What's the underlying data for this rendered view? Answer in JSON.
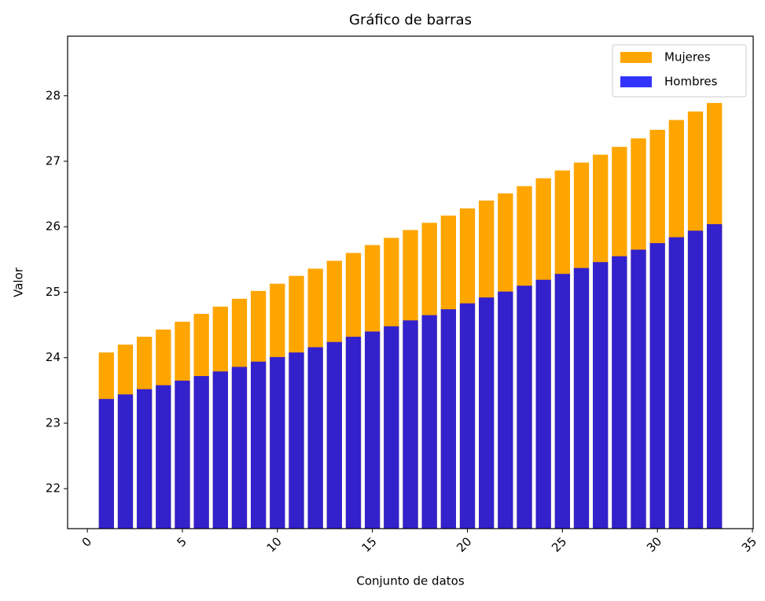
{
  "chart_data": {
    "type": "bar",
    "overlap": true,
    "title": "Gráfico de barras",
    "x_label": "Conjunto de datos",
    "y_label": "Valor",
    "x": [
      1,
      2,
      3,
      4,
      5,
      6,
      7,
      8,
      9,
      10,
      11,
      12,
      13,
      14,
      15,
      16,
      17,
      18,
      19,
      20,
      21,
      22,
      23,
      24,
      25,
      26,
      27,
      28,
      29,
      30,
      31,
      32,
      33
    ],
    "bar_width": 0.8,
    "series": [
      {
        "name": "Mujeres",
        "color": "#ffa500",
        "alpha": 1,
        "values": [
          24.08,
          24.2,
          24.32,
          24.43,
          24.55,
          24.67,
          24.78,
          24.9,
          25.02,
          25.13,
          25.25,
          25.36,
          25.48,
          25.6,
          25.72,
          25.83,
          25.95,
          26.06,
          26.17,
          26.28,
          26.4,
          26.51,
          26.62,
          26.74,
          26.86,
          26.98,
          27.1,
          27.22,
          27.35,
          27.48,
          27.63,
          27.76,
          27.89
        ]
      },
      {
        "name": "Hombres",
        "color": "#0000ff",
        "alpha": 0.8,
        "values": [
          23.37,
          23.44,
          23.52,
          23.58,
          23.65,
          23.72,
          23.79,
          23.86,
          23.94,
          24.01,
          24.08,
          24.16,
          24.24,
          24.32,
          24.4,
          24.48,
          24.57,
          24.65,
          24.74,
          24.83,
          24.92,
          25.01,
          25.1,
          25.19,
          25.28,
          25.37,
          25.46,
          25.55,
          25.65,
          25.75,
          25.84,
          25.94,
          26.04
        ]
      }
    ],
    "xlim": [
      -1.04,
      35.04
    ],
    "xticks": [
      0,
      5,
      10,
      15,
      20,
      25,
      30,
      35
    ],
    "ylim": [
      21.39,
      28.91
    ],
    "yticks": [
      22,
      23,
      24,
      25,
      26,
      27,
      28
    ],
    "grid": false,
    "legend": "upper-right"
  }
}
